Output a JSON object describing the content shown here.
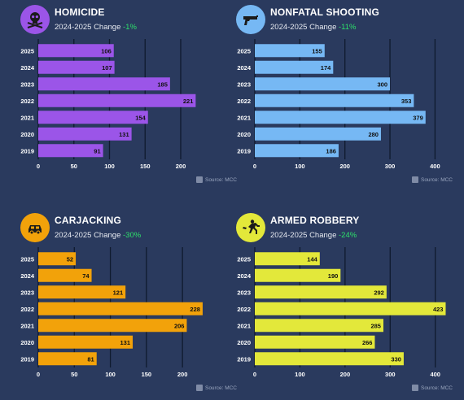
{
  "colors": {
    "background": "#2a3a5e",
    "grid": "#0f1a2e",
    "change_positive": "#2ee06b"
  },
  "source_label": "Source: MCC",
  "panels": [
    {
      "title": "HOMICIDE",
      "change_label": "2024-2025 Change",
      "change_value": "-1%",
      "icon": "skull-crossbones-icon",
      "color": "#9b55e8",
      "icon_bg": "#9b55e8"
    },
    {
      "title": "NONFATAL SHOOTING",
      "change_label": "2024-2025 Change",
      "change_value": "-11%",
      "icon": "handgun-icon",
      "color": "#76b8f4",
      "icon_bg": "#76b8f4"
    },
    {
      "title": "CARJACKING",
      "change_label": "2024-2025 Change",
      "change_value": "-30%",
      "icon": "car-icon",
      "color": "#f2a20a",
      "icon_bg": "#f2a20a"
    },
    {
      "title": "ARMED ROBBERY",
      "change_label": "2024-2025 Change",
      "change_value": "-24%",
      "icon": "running-robber-icon",
      "color": "#e3e83a",
      "icon_bg": "#e3e83a"
    }
  ],
  "chart_data": [
    {
      "type": "bar",
      "orientation": "horizontal",
      "title": "HOMICIDE",
      "categories": [
        "2025",
        "2024",
        "2023",
        "2022",
        "2021",
        "2020",
        "2019"
      ],
      "values": [
        106,
        107,
        185,
        221,
        154,
        131,
        91
      ],
      "xlim": [
        0,
        240
      ],
      "xticks": [
        0,
        50,
        100,
        150,
        200
      ],
      "grid": true
    },
    {
      "type": "bar",
      "orientation": "horizontal",
      "title": "NONFATAL SHOOTING",
      "categories": [
        "2025",
        "2024",
        "2023",
        "2022",
        "2021",
        "2020",
        "2019"
      ],
      "values": [
        155,
        174,
        300,
        353,
        379,
        280,
        186
      ],
      "xlim": [
        0,
        430
      ],
      "xticks": [
        0,
        100,
        200,
        300,
        400
      ],
      "grid": true
    },
    {
      "type": "bar",
      "orientation": "horizontal",
      "title": "CARJACKING",
      "categories": [
        "2025",
        "2024",
        "2023",
        "2022",
        "2021",
        "2020",
        "2019"
      ],
      "values": [
        52,
        74,
        121,
        228,
        206,
        131,
        81
      ],
      "xlim": [
        0,
        245
      ],
      "xticks": [
        0,
        50,
        100,
        150,
        200
      ],
      "grid": true
    },
    {
      "type": "bar",
      "orientation": "horizontal",
      "title": "ARMED ROBBERY",
      "categories": [
        "2025",
        "2024",
        "2023",
        "2022",
        "2021",
        "2020",
        "2019"
      ],
      "values": [
        144,
        190,
        292,
        423,
        285,
        266,
        330
      ],
      "xlim": [
        0,
        460
      ],
      "xticks": [
        0,
        100,
        200,
        300,
        400
      ],
      "grid": true
    }
  ]
}
